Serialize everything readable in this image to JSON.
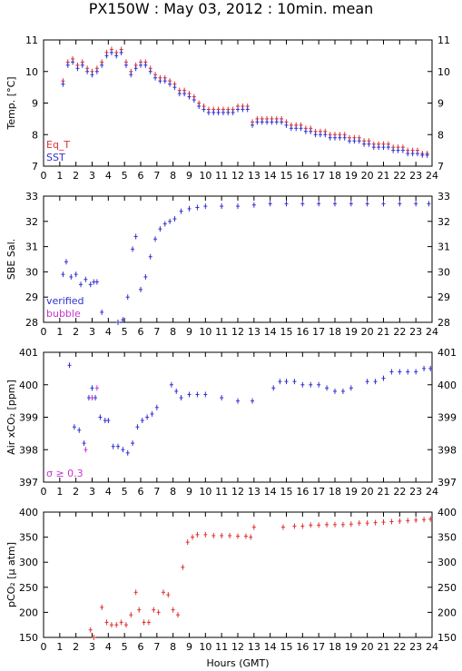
{
  "title": "PX150W : May 03, 2012 : 10min. mean",
  "colors": {
    "eq_t": "#e03030",
    "sst": "#3030d0",
    "verified": "#3030d0",
    "bubble": "#cc33cc",
    "pco2": "#e03030",
    "axis": "#000000"
  },
  "chart_data": [
    {
      "type": "scatter",
      "xlabel": "",
      "ylabel": "Temp. [°C]",
      "xlim": [
        0,
        24
      ],
      "ylim": [
        7,
        11
      ],
      "yticks": [
        "7",
        "8",
        "9",
        "10",
        "11"
      ],
      "xticks": [
        "0",
        "1",
        "2",
        "3",
        "4",
        "5",
        "6",
        "7",
        "8",
        "9",
        "10",
        "11",
        "12",
        "13",
        "14",
        "15",
        "16",
        "17",
        "18",
        "19",
        "20",
        "21",
        "22",
        "23",
        "24"
      ],
      "legend": [
        "Eq_T",
        "SST"
      ],
      "legend_position": "bottom-left",
      "series": [
        {
          "name": "Eq_T",
          "x": [
            1.2,
            1.5,
            1.8,
            2.1,
            2.4,
            2.7,
            3.0,
            3.3,
            3.6,
            3.9,
            4.2,
            4.5,
            4.8,
            5.1,
            5.4,
            5.7,
            6.0,
            6.3,
            6.6,
            6.9,
            7.2,
            7.5,
            7.8,
            8.1,
            8.4,
            8.7,
            9.0,
            9.3,
            9.6,
            9.9,
            10.2,
            10.5,
            10.8,
            11.1,
            11.4,
            11.7,
            12.0,
            12.3,
            12.6,
            12.9,
            13.2,
            13.5,
            13.8,
            14.1,
            14.4,
            14.7,
            15.0,
            15.3,
            15.6,
            15.9,
            16.2,
            16.5,
            16.8,
            17.1,
            17.4,
            17.7,
            18.0,
            18.3,
            18.6,
            18.9,
            19.2,
            19.5,
            19.8,
            20.1,
            20.4,
            20.7,
            21.0,
            21.3,
            21.6,
            21.9,
            22.2,
            22.5,
            22.8,
            23.1,
            23.4,
            23.7
          ],
          "values": [
            9.7,
            10.3,
            10.4,
            10.2,
            10.3,
            10.1,
            10.0,
            10.1,
            10.3,
            10.6,
            10.7,
            10.6,
            10.7,
            10.3,
            10.0,
            10.2,
            10.3,
            10.3,
            10.1,
            9.9,
            9.8,
            9.8,
            9.7,
            9.6,
            9.4,
            9.4,
            9.3,
            9.2,
            9.0,
            8.9,
            8.8,
            8.8,
            8.8,
            8.8,
            8.8,
            8.8,
            8.9,
            8.9,
            8.9,
            8.4,
            8.5,
            8.5,
            8.5,
            8.5,
            8.5,
            8.5,
            8.4,
            8.3,
            8.3,
            8.3,
            8.2,
            8.2,
            8.1,
            8.1,
            8.1,
            8.0,
            8.0,
            8.0,
            8.0,
            7.9,
            7.9,
            7.9,
            7.8,
            7.8,
            7.7,
            7.7,
            7.7,
            7.7,
            7.6,
            7.6,
            7.6,
            7.5,
            7.5,
            7.5,
            7.4,
            7.4
          ]
        },
        {
          "name": "SST",
          "x": [
            1.2,
            1.5,
            1.8,
            2.1,
            2.4,
            2.7,
            3.0,
            3.3,
            3.6,
            3.9,
            4.2,
            4.5,
            4.8,
            5.1,
            5.4,
            5.7,
            6.0,
            6.3,
            6.6,
            6.9,
            7.2,
            7.5,
            7.8,
            8.1,
            8.4,
            8.7,
            9.0,
            9.3,
            9.6,
            9.9,
            10.2,
            10.5,
            10.8,
            11.1,
            11.4,
            11.7,
            12.0,
            12.3,
            12.6,
            12.9,
            13.2,
            13.5,
            13.8,
            14.1,
            14.4,
            14.7,
            15.0,
            15.3,
            15.6,
            15.9,
            16.2,
            16.5,
            16.8,
            17.1,
            17.4,
            17.7,
            18.0,
            18.3,
            18.6,
            18.9,
            19.2,
            19.5,
            19.8,
            20.1,
            20.4,
            20.7,
            21.0,
            21.3,
            21.6,
            21.9,
            22.2,
            22.5,
            22.8,
            23.1,
            23.4,
            23.7
          ],
          "values": [
            9.6,
            10.2,
            10.3,
            10.1,
            10.2,
            10.0,
            9.9,
            10.0,
            10.2,
            10.5,
            10.6,
            10.5,
            10.6,
            10.2,
            9.9,
            10.1,
            10.2,
            10.2,
            10.0,
            9.8,
            9.7,
            9.7,
            9.6,
            9.5,
            9.3,
            9.3,
            9.2,
            9.1,
            8.9,
            8.8,
            8.7,
            8.7,
            8.7,
            8.7,
            8.7,
            8.7,
            8.8,
            8.8,
            8.8,
            8.3,
            8.4,
            8.4,
            8.4,
            8.4,
            8.4,
            8.4,
            8.3,
            8.2,
            8.2,
            8.2,
            8.1,
            8.1,
            8.0,
            8.0,
            8.0,
            7.9,
            7.9,
            7.9,
            7.9,
            7.8,
            7.8,
            7.8,
            7.7,
            7.7,
            7.6,
            7.6,
            7.6,
            7.6,
            7.5,
            7.5,
            7.5,
            7.4,
            7.4,
            7.4,
            7.35,
            7.35
          ]
        }
      ]
    },
    {
      "type": "scatter",
      "xlabel": "",
      "ylabel": "SBE Sal.",
      "xlim": [
        0,
        24
      ],
      "ylim": [
        28,
        33
      ],
      "yticks": [
        "28",
        "29",
        "30",
        "31",
        "32",
        "33"
      ],
      "xticks": [
        "0",
        "1",
        "2",
        "3",
        "4",
        "5",
        "6",
        "7",
        "8",
        "9",
        "10",
        "11",
        "12",
        "13",
        "14",
        "15",
        "16",
        "17",
        "18",
        "19",
        "20",
        "21",
        "22",
        "23",
        "24"
      ],
      "legend": [
        "verified",
        "bubble"
      ],
      "legend_position": "bottom-left",
      "series": [
        {
          "name": "verified",
          "x": [
            1.2,
            1.4,
            1.7,
            2.0,
            2.3,
            2.6,
            2.9,
            3.1,
            3.3,
            3.6,
            3.8,
            4.0,
            4.3,
            4.6,
            4.9,
            5.2,
            5.5,
            5.7,
            6.0,
            6.3,
            6.6,
            6.9,
            7.2,
            7.5,
            7.8,
            8.1,
            8.5,
            9.0,
            9.5,
            10.0,
            11.0,
            12.0,
            13.0,
            14.0,
            15.0,
            16.0,
            17.0,
            18.0,
            19.0,
            20.0,
            21.0,
            22.0,
            23.0,
            23.8
          ],
          "values": [
            29.9,
            30.4,
            29.8,
            29.9,
            29.5,
            29.7,
            29.5,
            29.6,
            29.6,
            28.4,
            27.9,
            27.8,
            27.9,
            28.0,
            28.1,
            29.0,
            30.9,
            31.4,
            29.3,
            29.8,
            30.6,
            31.3,
            31.7,
            31.9,
            32.0,
            32.1,
            32.4,
            32.5,
            32.55,
            32.6,
            32.6,
            32.6,
            32.65,
            32.7,
            32.7,
            32.7,
            32.7,
            32.7,
            32.7,
            32.7,
            32.7,
            32.7,
            32.7,
            32.7
          ]
        }
      ]
    },
    {
      "type": "scatter",
      "xlabel": "",
      "ylabel": "Air xCO₂ [ppm]",
      "xlim": [
        0,
        24
      ],
      "ylim": [
        397,
        401
      ],
      "yticks": [
        "397",
        "398",
        "399",
        "400",
        "401"
      ],
      "xticks": [
        "0",
        "1",
        "2",
        "3",
        "4",
        "5",
        "6",
        "7",
        "8",
        "9",
        "10",
        "11",
        "12",
        "13",
        "14",
        "15",
        "16",
        "17",
        "18",
        "19",
        "20",
        "21",
        "22",
        "23",
        "24"
      ],
      "legend": [
        "σ ≥ 0.3"
      ],
      "legend_position": "bottom-left",
      "series": [
        {
          "name": "",
          "x": [
            1.6,
            1.9,
            2.2,
            2.5,
            2.8,
            3.0,
            3.2,
            3.5,
            3.8,
            4.0,
            4.3,
            4.6,
            4.9,
            5.2,
            5.5,
            5.8,
            6.1,
            6.4,
            6.7,
            7.0,
            7.9,
            8.2,
            8.5,
            9.0,
            9.5,
            10.0,
            11.0,
            12.0,
            12.9,
            14.2,
            14.6,
            15.0,
            15.5,
            16.0,
            16.5,
            17.0,
            17.5,
            18.0,
            18.5,
            19.0,
            20.0,
            20.5,
            21.0,
            21.5,
            22.0,
            22.5,
            23.0,
            23.5,
            23.9
          ],
          "values": [
            400.6,
            398.7,
            398.6,
            398.2,
            399.6,
            399.9,
            399.6,
            399.0,
            398.9,
            398.9,
            398.1,
            398.1,
            398.0,
            397.9,
            398.2,
            398.7,
            398.9,
            399.0,
            399.1,
            399.3,
            400.0,
            399.8,
            399.6,
            399.7,
            399.7,
            399.7,
            399.6,
            399.5,
            399.5,
            399.9,
            400.1,
            400.1,
            400.1,
            400.0,
            400.0,
            400.0,
            399.9,
            399.8,
            399.8,
            399.9,
            400.1,
            400.1,
            400.2,
            400.4,
            400.4,
            400.4,
            400.4,
            400.5,
            400.5
          ]
        },
        {
          "name": "σ ≥ 0.3",
          "x": [
            2.6,
            3.0,
            3.3
          ],
          "values": [
            398.0,
            399.6,
            399.9
          ]
        }
      ]
    },
    {
      "type": "scatter",
      "xlabel": "Hours (GMT)",
      "ylabel": "pCO₂ [μ atm]",
      "xlim": [
        0,
        24
      ],
      "ylim": [
        150,
        400
      ],
      "yticks": [
        "150",
        "200",
        "250",
        "300",
        "350",
        "400"
      ],
      "xticks": [
        "0",
        "1",
        "2",
        "3",
        "4",
        "5",
        "6",
        "7",
        "8",
        "9",
        "10",
        "11",
        "12",
        "13",
        "14",
        "15",
        "16",
        "17",
        "18",
        "19",
        "20",
        "21",
        "22",
        "23",
        "24"
      ],
      "series": [
        {
          "name": "",
          "x": [
            2.9,
            3.1,
            3.3,
            3.6,
            3.9,
            4.2,
            4.5,
            4.8,
            5.1,
            5.4,
            5.7,
            5.9,
            6.2,
            6.5,
            6.8,
            7.1,
            7.4,
            7.7,
            8.0,
            8.3,
            8.6,
            8.9,
            9.2,
            9.5,
            10.0,
            10.5,
            11.0,
            11.5,
            12.0,
            12.5,
            12.8,
            13.0,
            14.8,
            15.5,
            16.0,
            16.5,
            17.0,
            17.5,
            18.0,
            18.5,
            19.0,
            19.5,
            20.0,
            20.5,
            21.0,
            21.5,
            22.0,
            22.5,
            23.0,
            23.5,
            23.9
          ],
          "values": [
            165,
            150,
            140,
            210,
            180,
            175,
            175,
            180,
            175,
            195,
            240,
            205,
            180,
            180,
            205,
            200,
            240,
            235,
            205,
            195,
            290,
            340,
            350,
            355,
            355,
            353,
            353,
            353,
            352,
            352,
            350,
            370,
            370,
            372,
            372,
            374,
            374,
            375,
            375,
            375,
            376,
            378,
            378,
            379,
            380,
            381,
            382,
            383,
            384,
            385,
            386
          ]
        }
      ]
    }
  ]
}
